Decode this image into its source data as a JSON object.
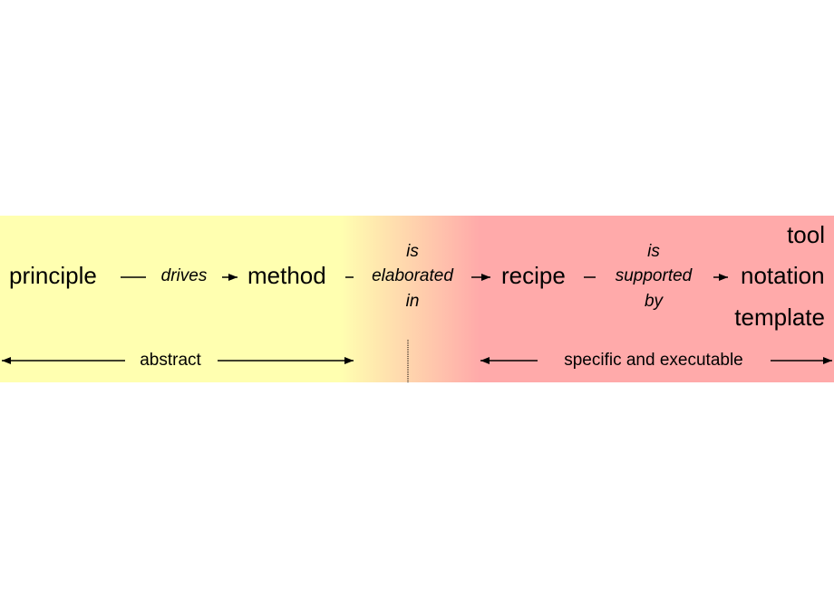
{
  "nodes": {
    "principle": "principle",
    "method": "method",
    "recipe": "recipe",
    "outputs": [
      "tool",
      "notation",
      "template"
    ]
  },
  "edges": {
    "drives": [
      "drives"
    ],
    "elaborated": [
      "is",
      "elaborated",
      "in"
    ],
    "supported": [
      "is",
      "supported",
      "by"
    ]
  },
  "ranges": {
    "abstract": "abstract",
    "specific": "specific and executable"
  }
}
